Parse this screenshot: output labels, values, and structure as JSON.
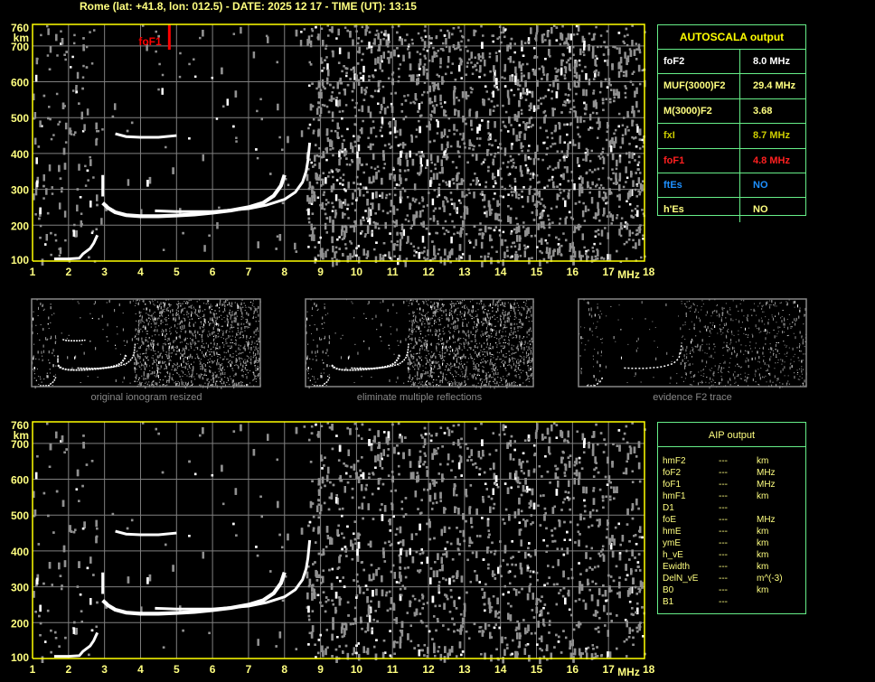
{
  "header": {
    "title": "Rome (lat: +41.8, lon: 012.5) - DATE: 2025 12 17 - TIME (UT): 13:15"
  },
  "colors": {
    "axis": "#ffff00",
    "label": "#ffff80",
    "grid": "#808080",
    "trace": "#ffffff",
    "noise": "#909090",
    "foF1_marker": "#ff0000",
    "panel_border": "#66ee88"
  },
  "chart_data": [
    {
      "type": "scatter",
      "title": "",
      "xlabel": "MHz",
      "ylabel": "km",
      "xlim": [
        1,
        18
      ],
      "ylim": [
        100,
        760
      ],
      "grid": true,
      "x_ticks": [
        "1",
        "2",
        "3",
        "4",
        "5",
        "6",
        "7",
        "8",
        "9",
        "10",
        "11",
        "12",
        "13",
        "14",
        "15",
        "16",
        "17",
        "18"
      ],
      "y_ticks": [
        "100",
        "200",
        "300",
        "400",
        "500",
        "600",
        "700",
        "760"
      ],
      "markers": [
        {
          "label": "foF1",
          "x": 4.8
        }
      ],
      "series": [
        {
          "id": "o_trace",
          "points": [
            [
              2.95,
              262
            ],
            [
              3.1,
              248
            ],
            [
              3.3,
              236
            ],
            [
              3.6,
              228
            ],
            [
              4.0,
              225
            ],
            [
              4.5,
              225
            ],
            [
              5.0,
              227
            ],
            [
              5.5,
              230
            ],
            [
              6.0,
              235
            ],
            [
              6.5,
              241
            ],
            [
              7.0,
              250
            ],
            [
              7.4,
              262
            ],
            [
              7.7,
              282
            ],
            [
              7.9,
              310
            ],
            [
              8.0,
              340
            ]
          ]
        },
        {
          "id": "x_trace",
          "points": [
            [
              4.4,
              240
            ],
            [
              5.0,
              238
            ],
            [
              6.0,
              238
            ],
            [
              7.0,
              246
            ],
            [
              7.5,
              256
            ],
            [
              8.0,
              272
            ],
            [
              8.3,
              292
            ],
            [
              8.5,
              320
            ],
            [
              8.6,
              350
            ],
            [
              8.65,
              380
            ],
            [
              8.7,
              430
            ]
          ]
        },
        {
          "id": "e_trace",
          "points": [
            [
              1.6,
              106
            ],
            [
              2.0,
              106
            ],
            [
              2.3,
              108
            ],
            [
              2.4,
              120
            ],
            [
              2.6,
              135
            ],
            [
              2.7,
              150
            ],
            [
              2.8,
              172
            ]
          ]
        },
        {
          "id": "multiple_trace",
          "points": [
            [
              3.3,
              455
            ],
            [
              3.6,
              447
            ],
            [
              4.0,
              445
            ],
            [
              4.5,
              445
            ],
            [
              5.0,
              450
            ]
          ]
        },
        {
          "id": "vertical_spread",
          "points": [
            [
              2.95,
              300
            ],
            [
              2.95,
              280
            ],
            [
              2.95,
              340
            ]
          ]
        }
      ]
    },
    {
      "type": "scatter",
      "title": "",
      "xlabel": "MHz",
      "ylabel": "km",
      "xlim": [
        1,
        18
      ],
      "ylim": [
        100,
        760
      ],
      "grid": true,
      "x_ticks": [
        "1",
        "2",
        "3",
        "4",
        "5",
        "6",
        "7",
        "8",
        "9",
        "10",
        "11",
        "12",
        "13",
        "14",
        "15",
        "16",
        "17",
        "18"
      ],
      "y_ticks": [
        "100",
        "200",
        "300",
        "400",
        "500",
        "600",
        "700",
        "760"
      ],
      "series_ref": "same traces as upper ionogram"
    }
  ],
  "thumbnails": [
    {
      "caption": "original ionogram resized"
    },
    {
      "caption": "eliminate multiple reflections"
    },
    {
      "caption": "evidence F2 trace"
    }
  ],
  "autoscala": {
    "title": "AUTOSCALA output",
    "rows": [
      {
        "key": "foF2",
        "value": "8.0 MHz",
        "color": "#ffffff"
      },
      {
        "key": "MUF(3000)F2",
        "value": "29.4 MHz",
        "color": "#ffff80"
      },
      {
        "key": "M(3000)F2",
        "value": "3.68",
        "color": "#ffff80"
      },
      {
        "key": "fxI",
        "value": "8.7 MHz",
        "color": "#cccc00"
      },
      {
        "key": "foF1",
        "value": "4.8 MHz",
        "color": "#ff2020"
      },
      {
        "key": "ftEs",
        "value": "NO",
        "color": "#1e90ff"
      },
      {
        "key": "h'Es",
        "value": "NO",
        "color": "#ffff80"
      }
    ]
  },
  "aip": {
    "title": "AIP output",
    "rows": [
      {
        "key": "hmF2",
        "value": "---",
        "unit": "km"
      },
      {
        "key": "foF2",
        "value": "---",
        "unit": "MHz"
      },
      {
        "key": "foF1",
        "value": "---",
        "unit": "MHz"
      },
      {
        "key": "hmF1",
        "value": "---",
        "unit": "km"
      },
      {
        "key": "D1",
        "value": "---",
        "unit": ""
      },
      {
        "key": "foE",
        "value": "---",
        "unit": "MHz"
      },
      {
        "key": "hmE",
        "value": "---",
        "unit": "km"
      },
      {
        "key": "ymE",
        "value": "---",
        "unit": "km"
      },
      {
        "key": "h_vE",
        "value": "---",
        "unit": "km"
      },
      {
        "key": "Ewidth",
        "value": "---",
        "unit": "km"
      },
      {
        "key": "DelN_vE",
        "value": "---",
        "unit": "m^(-3)"
      },
      {
        "key": "B0",
        "value": "---",
        "unit": "km"
      },
      {
        "key": "B1",
        "value": "---",
        "unit": ""
      }
    ]
  }
}
